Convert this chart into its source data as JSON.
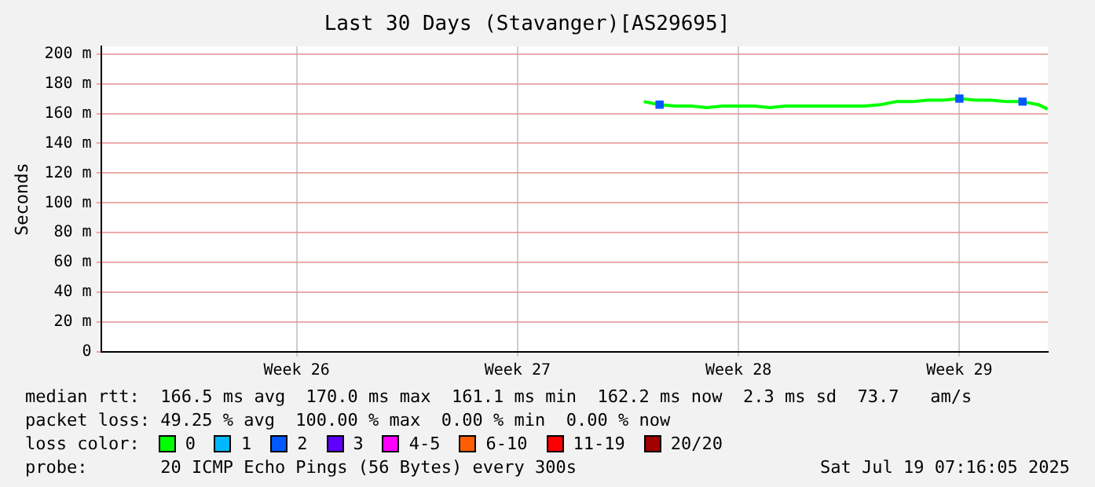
{
  "chart_data": {
    "type": "line",
    "title": "Last 30 Days (Stavanger)[AS29695]",
    "ylabel": "Seconds",
    "x": [
      "2025-07-06T12:00",
      "2025-07-07T00:00",
      "2025-07-07T12:00",
      "2025-07-08T00:00",
      "2025-07-08T12:00",
      "2025-07-09T00:00",
      "2025-07-09T12:00",
      "2025-07-10T00:00",
      "2025-07-10T12:00",
      "2025-07-11T00:00",
      "2025-07-11T12:00",
      "2025-07-12T00:00",
      "2025-07-12T12:00",
      "2025-07-13T00:00",
      "2025-07-13T12:00",
      "2025-07-14T00:00",
      "2025-07-14T12:00",
      "2025-07-15T00:00",
      "2025-07-15T12:00",
      "2025-07-16T00:00",
      "2025-07-16T12:00",
      "2025-07-17T00:00",
      "2025-07-17T12:00",
      "2025-07-18T00:00",
      "2025-07-18T12:00",
      "2025-07-19T00:00",
      "2025-07-19T07:00"
    ],
    "series": [
      {
        "name": "0",
        "color": "#00ff00",
        "values": [
          168,
          166,
          165,
          165,
          164,
          165,
          165,
          165,
          164,
          165,
          165,
          165,
          165,
          165,
          165,
          166,
          168,
          168,
          169,
          169,
          170,
          169,
          169,
          168,
          168,
          166,
          163
        ]
      },
      {
        "name": "1",
        "color": "#00b8ff",
        "values": [
          null,
          null,
          null,
          null,
          null,
          null,
          null,
          null,
          null,
          null,
          null,
          null,
          null,
          null,
          null,
          null,
          null,
          null,
          null,
          null,
          null,
          null,
          null,
          null,
          null,
          null,
          null
        ]
      },
      {
        "name": "2",
        "color": "#0059ff",
        "type": "scatter",
        "marker": "square",
        "values": [
          null,
          166,
          null,
          null,
          null,
          null,
          null,
          null,
          null,
          null,
          null,
          null,
          null,
          null,
          null,
          null,
          null,
          null,
          null,
          null,
          170,
          null,
          null,
          null,
          168,
          null,
          null
        ]
      },
      {
        "name": "3",
        "color": "#5e00ff",
        "values": [
          null,
          null,
          null,
          null,
          null,
          null,
          null,
          null,
          null,
          null,
          null,
          null,
          null,
          null,
          null,
          null,
          null,
          null,
          null,
          null,
          null,
          null,
          null,
          null,
          null,
          null,
          null
        ]
      },
      {
        "name": "4-5",
        "color": "#ff00ff",
        "values": [
          null,
          null,
          null,
          null,
          null,
          null,
          null,
          null,
          null,
          null,
          null,
          null,
          null,
          null,
          null,
          null,
          null,
          null,
          null,
          null,
          null,
          null,
          null,
          null,
          null,
          null,
          null
        ]
      },
      {
        "name": "6-10",
        "color": "#ff5e00",
        "values": [
          null,
          null,
          null,
          null,
          null,
          null,
          null,
          null,
          null,
          null,
          null,
          null,
          null,
          null,
          null,
          null,
          null,
          null,
          null,
          null,
          null,
          null,
          null,
          null,
          null,
          null,
          null
        ]
      },
      {
        "name": "11-19",
        "color": "#ff0000",
        "values": [
          null,
          null,
          null,
          null,
          null,
          null,
          null,
          null,
          null,
          null,
          null,
          null,
          null,
          null,
          null,
          null,
          null,
          null,
          null,
          null,
          null,
          null,
          null,
          null,
          null,
          null,
          null
        ]
      },
      {
        "name": "20/20",
        "color": "#a10000",
        "values": [
          null,
          null,
          null,
          null,
          null,
          null,
          null,
          null,
          null,
          null,
          null,
          null,
          null,
          null,
          null,
          null,
          null,
          null,
          null,
          null,
          null,
          null,
          null,
          null,
          null,
          null,
          null
        ]
      }
    ],
    "xlim": [
      "2025-06-19T07:16",
      "2025-07-19T07:16"
    ],
    "xticks": [
      {
        "value": "2025-06-25T12:00",
        "label": "Week 26"
      },
      {
        "value": "2025-07-02T12:00",
        "label": "Week 27"
      },
      {
        "value": "2025-07-09T12:00",
        "label": "Week 28"
      },
      {
        "value": "2025-07-16T12:00",
        "label": "Week 29"
      }
    ],
    "ylim": [
      0,
      205
    ],
    "yticks": [
      0,
      {
        "value": 20,
        "label": "20 m"
      },
      {
        "value": 40,
        "label": "40 m"
      },
      {
        "value": 60,
        "label": "60 m"
      },
      {
        "value": 80,
        "label": "80 m"
      },
      {
        "value": 100,
        "label": "100 m"
      },
      {
        "value": 120,
        "label": "120 m"
      },
      {
        "value": 140,
        "label": "140 m"
      },
      {
        "value": 160,
        "label": "160 m"
      },
      {
        "value": 180,
        "label": "180 m"
      },
      {
        "value": 200,
        "label": "200 m"
      }
    ],
    "grid": true,
    "legend": "bottom",
    "marker": "none",
    "line_style": "solid",
    "annotations": [
      "median rtt:  166.5 ms avg  170.0 ms max  161.1 ms min  162.2 ms now  2.3 ms sd  73.7   am/s",
      "packet loss: 49.25 % avg  100.00 % max  0.00 % min  0.00 % now",
      "loss color:",
      "probe:       20 ICMP Echo Pings (56 Bytes) every 300s",
      "Sat Jul 19 07:16:05 2025"
    ]
  }
}
